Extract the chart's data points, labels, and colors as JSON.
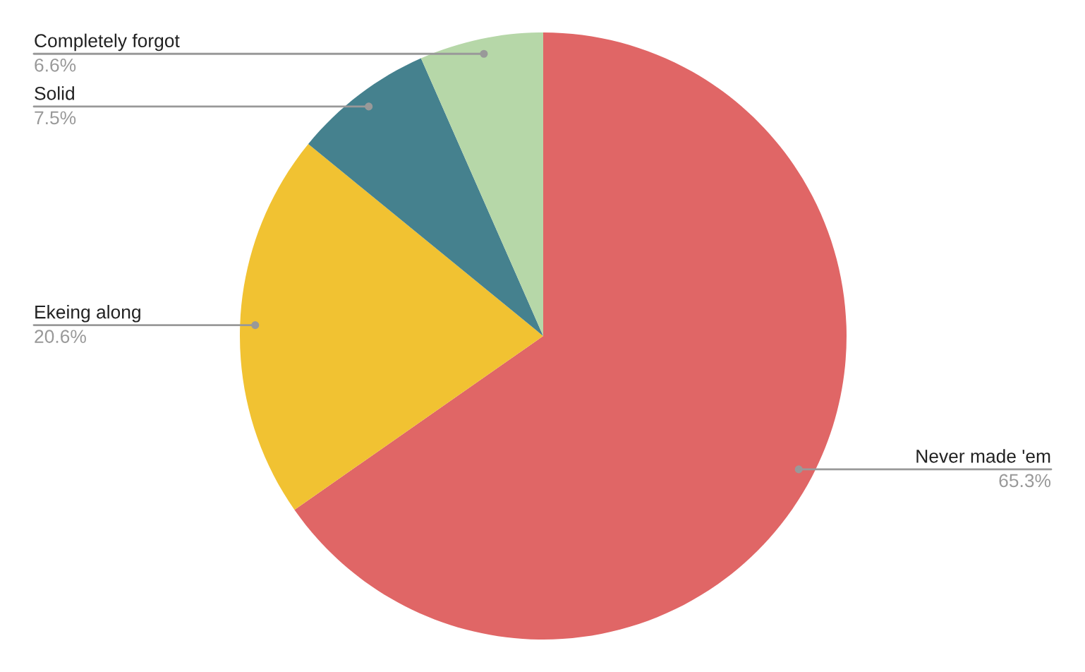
{
  "chart_data": {
    "type": "pie",
    "categories": [
      "Never made 'em",
      "Ekeing along",
      "Solid",
      "Completely forgot"
    ],
    "values": [
      65.3,
      20.6,
      7.5,
      6.6
    ],
    "colors": [
      "#e06666",
      "#f1c232",
      "#45818e",
      "#b6d7a8"
    ],
    "value_labels": [
      "65.3%",
      "20.6%",
      "7.5%",
      "6.6%"
    ],
    "legend": false
  }
}
